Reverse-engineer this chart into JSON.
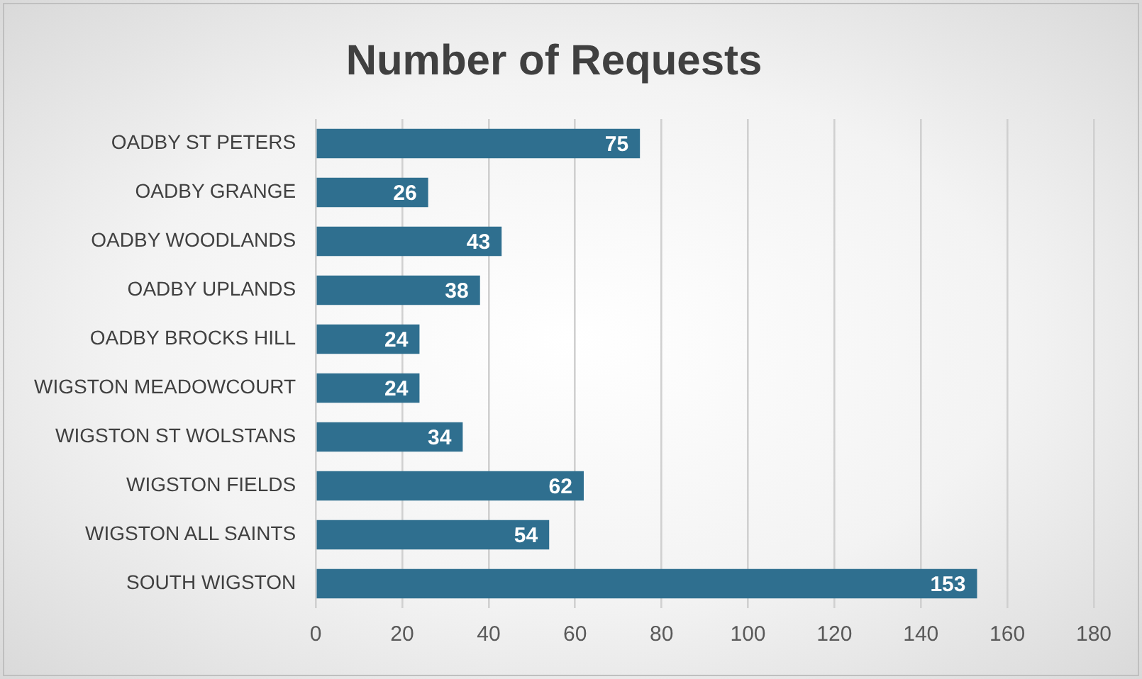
{
  "chart_data": {
    "type": "bar",
    "orientation": "horizontal",
    "title": "Number of Requests",
    "categories": [
      "OADBY ST PETERS",
      "OADBY GRANGE",
      "OADBY WOODLANDS",
      "OADBY UPLANDS",
      "OADBY BROCKS HILL",
      "WIGSTON MEADOWCOURT",
      "WIGSTON ST WOLSTANS",
      "WIGSTON FIELDS",
      "WIGSTON ALL SAINTS",
      "SOUTH WIGSTON"
    ],
    "values": [
      75,
      26,
      43,
      38,
      24,
      24,
      34,
      62,
      54,
      153
    ],
    "color": "#2f6f8f",
    "xlim": [
      0,
      180
    ],
    "xticks": [
      0,
      20,
      40,
      60,
      80,
      100,
      120,
      140,
      160,
      180
    ],
    "grid": "x",
    "legend": false,
    "data_labels": true
  }
}
